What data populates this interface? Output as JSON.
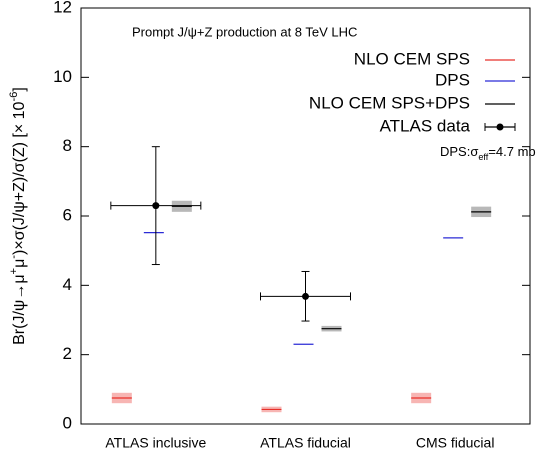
{
  "chart_data": {
    "type": "point-range",
    "title": "Prompt J/ψ+Z production at 8 TeV LHC",
    "annotation_parts": [
      {
        "text": "DPS:σ"
      },
      {
        "text": "eff",
        "sub": true
      },
      {
        "text": "=4.7 mb"
      }
    ],
    "y_label_parts": [
      {
        "text": "Br(J/ψ→μ"
      },
      {
        "text": "+",
        "sup": true
      },
      {
        "text": "μ"
      },
      {
        "text": "-",
        "sup": true
      },
      {
        "text": ")×σ(J/ψ+Z)/σ(Z) [× 10"
      },
      {
        "text": "-6",
        "sup": true
      },
      {
        "text": "]"
      }
    ],
    "categories": [
      "ATLAS inclusive",
      "ATLAS fiducial",
      "CMS fiducial"
    ],
    "ylim": [
      0,
      12
    ],
    "yticks": [
      0,
      2,
      4,
      6,
      8,
      10,
      12
    ],
    "legend_position": "upper right",
    "series": [
      {
        "name": "NLO CEM SPS",
        "color": "#e8302a",
        "band_color": "#f7b5b3",
        "style": "band",
        "values": [
          0.75,
          0.42,
          0.75
        ],
        "lower": [
          0.6,
          0.34,
          0.6
        ],
        "upper": [
          0.9,
          0.5,
          0.9
        ]
      },
      {
        "name": "DPS",
        "color": "#2b2bd6",
        "style": "line",
        "values": [
          5.52,
          2.3,
          5.37
        ]
      },
      {
        "name": "NLO CEM SPS+DPS",
        "color": "#000000",
        "band_color": "#b8b8b8",
        "style": "band",
        "values": [
          6.28,
          2.75,
          6.12
        ],
        "lower": [
          6.12,
          2.67,
          5.97
        ],
        "upper": [
          6.44,
          2.83,
          6.27
        ]
      },
      {
        "name": "ATLAS data",
        "color": "#000000",
        "style": "errorbar",
        "values": [
          6.3,
          3.68,
          null
        ],
        "lower": [
          4.6,
          2.97,
          null
        ],
        "upper": [
          8.0,
          4.4,
          null
        ]
      }
    ]
  }
}
